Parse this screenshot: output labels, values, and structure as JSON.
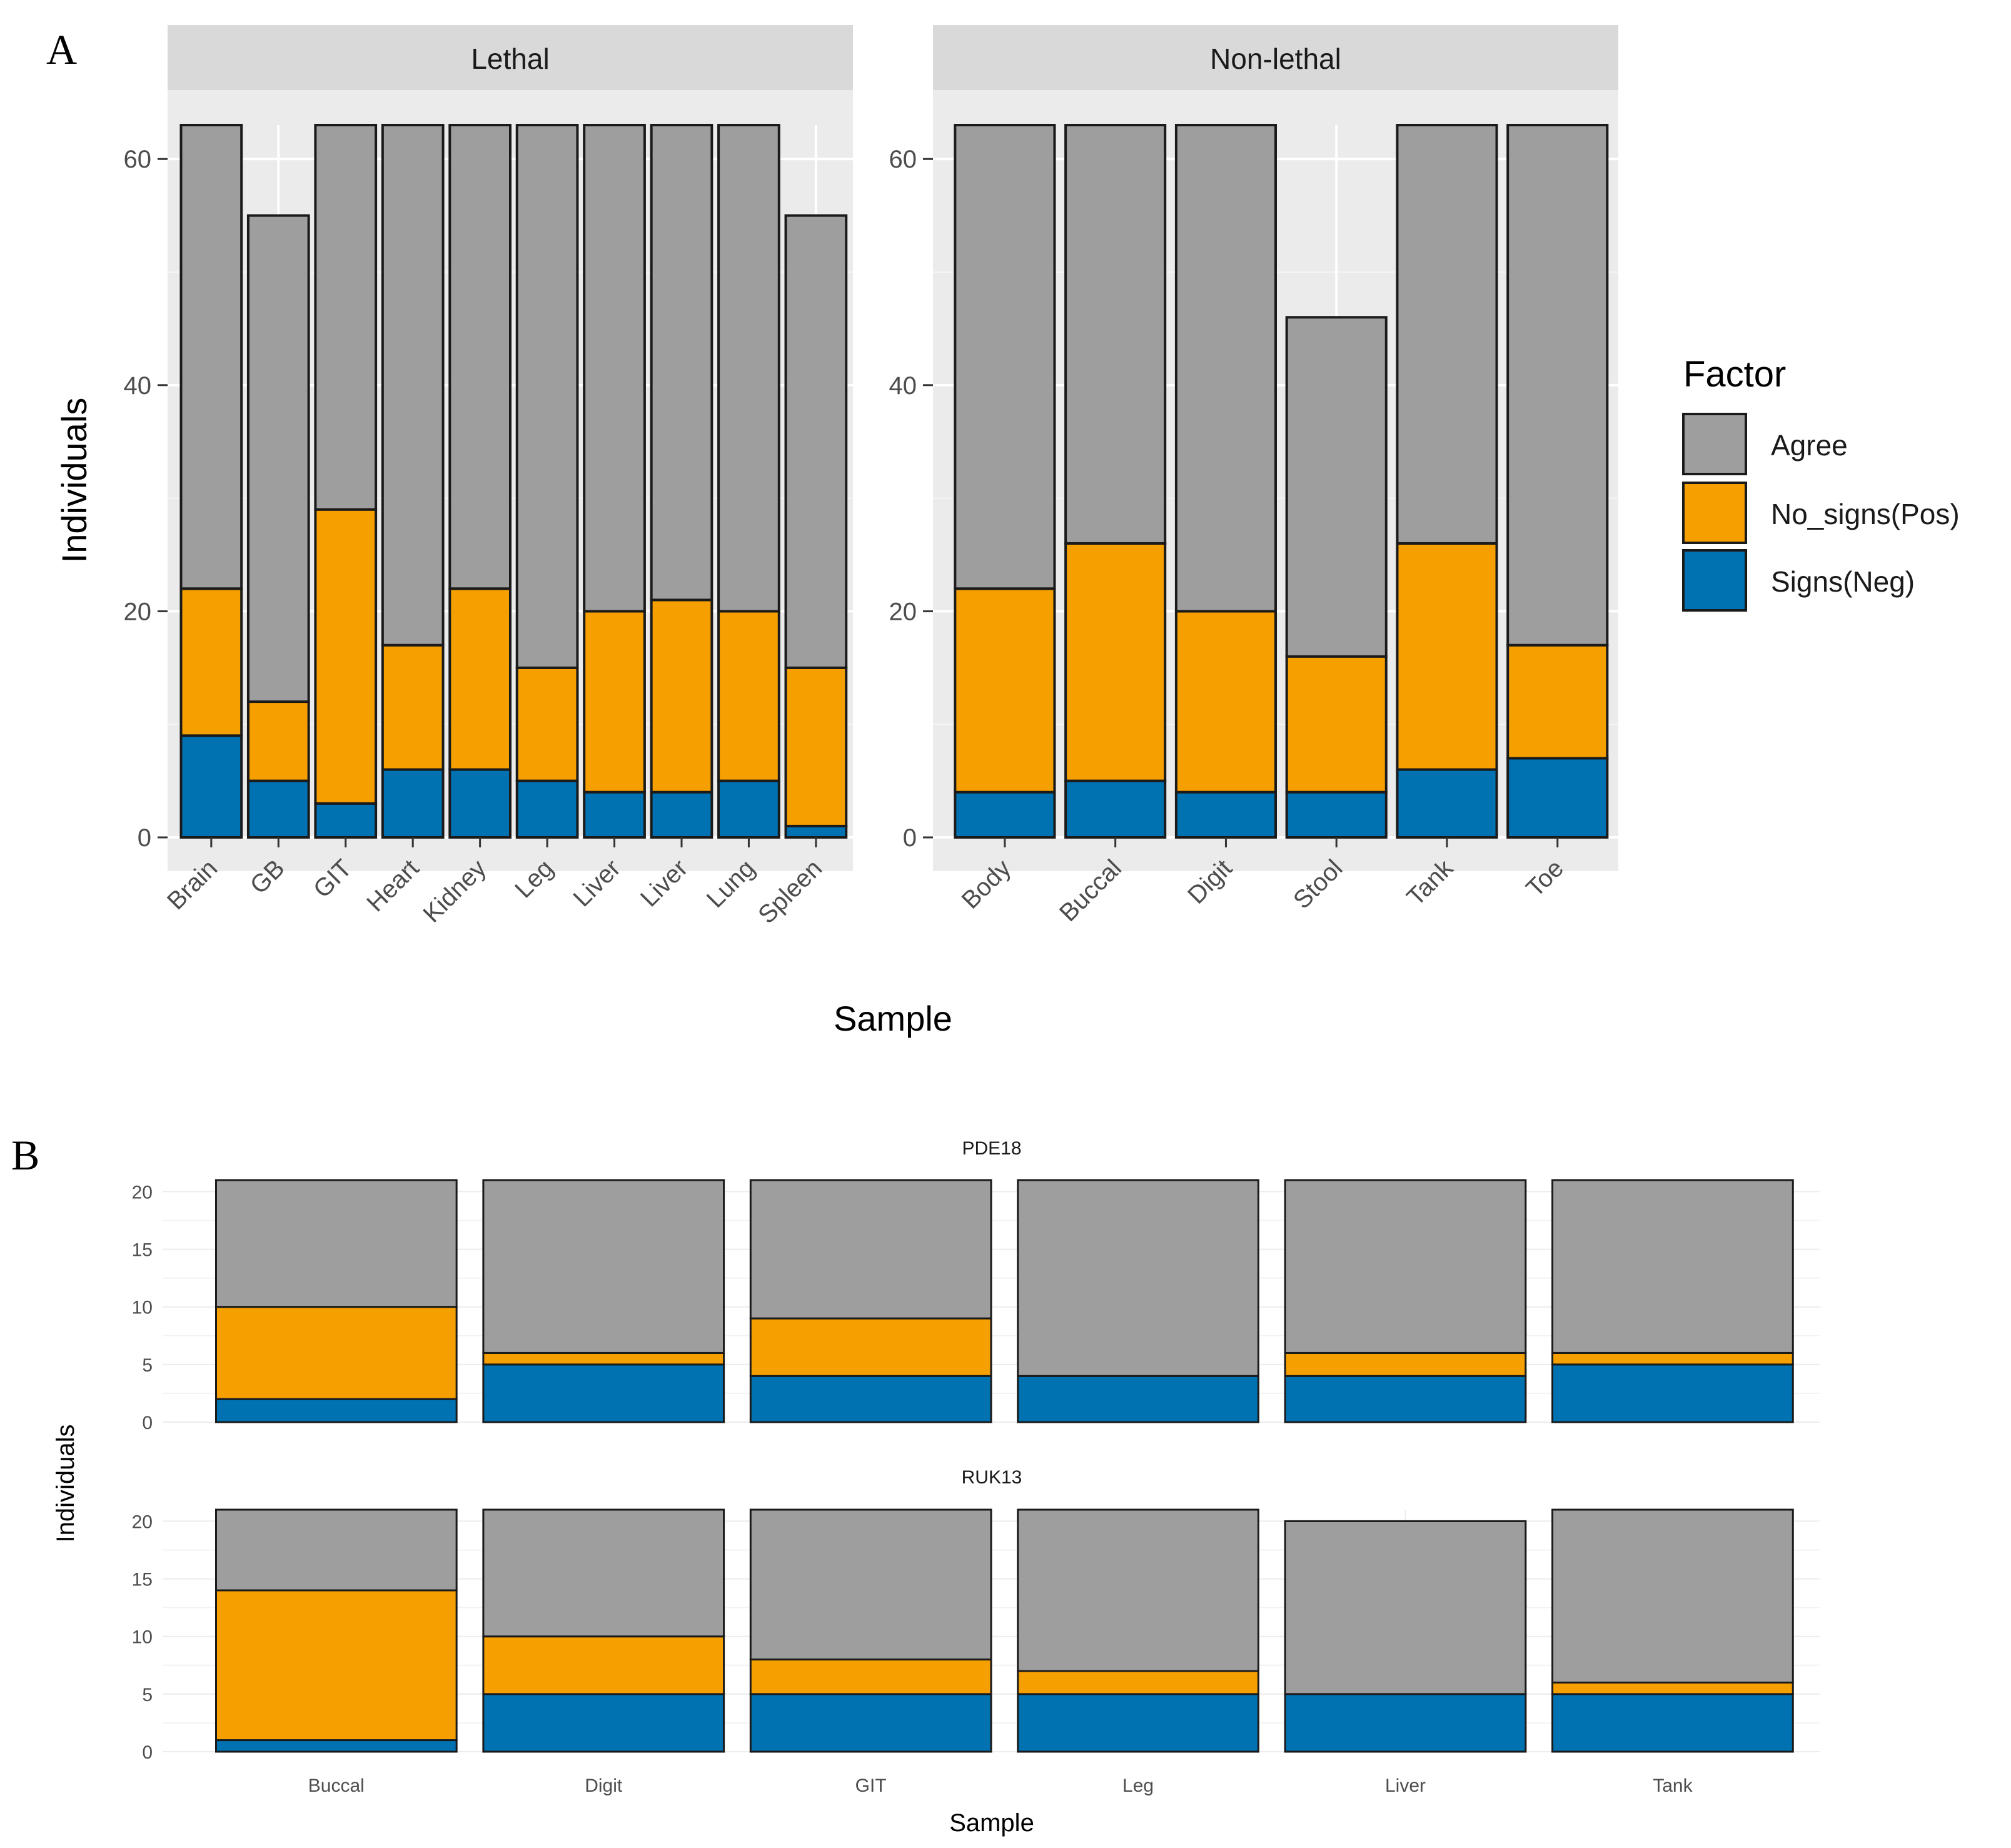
{
  "colors": {
    "agree": "#9e9e9e",
    "no_signs_pos": "#f59f00",
    "signs_neg": "#0072b2",
    "panel_bg_a": "#ebebeb",
    "strip_bg": "#d9d9d9",
    "grid_major_a": "#ffffff",
    "grid_b": "#ececec"
  },
  "panel_labels": {
    "a": "A",
    "b": "B"
  },
  "legend": {
    "title": "Factor",
    "entries": [
      {
        "key": "agree",
        "label": "Agree"
      },
      {
        "key": "no_signs_pos",
        "label": "No_signs(Pos)"
      },
      {
        "key": "signs_neg",
        "label": "Signs(Neg)"
      }
    ]
  },
  "chart_data": [
    {
      "id": "A",
      "type": "bar",
      "stacked": true,
      "xlabel": "Sample",
      "ylabel": "Individuals",
      "ylim": [
        0,
        63
      ],
      "yticks": [
        0,
        20,
        40,
        60
      ],
      "grid": true,
      "legend_position": "right",
      "stack_order": [
        "Signs(Neg)",
        "No_signs(Pos)",
        "Agree"
      ],
      "facets": [
        {
          "label": "Lethal",
          "categories": [
            "Brain",
            "GB",
            "GIT",
            "Heart",
            "Kidney",
            "Leg",
            "Liver",
            "Liver",
            "Lung",
            "Spleen"
          ],
          "series": [
            {
              "name": "Signs(Neg)",
              "values": [
                9,
                5,
                3,
                6,
                6,
                5,
                4,
                4,
                5,
                1
              ]
            },
            {
              "name": "No_signs(Pos)",
              "values": [
                13,
                7,
                26,
                11,
                16,
                10,
                16,
                17,
                15,
                14
              ]
            },
            {
              "name": "Agree",
              "values": [
                41,
                43,
                34,
                46,
                41,
                48,
                43,
                42,
                43,
                40
              ]
            }
          ]
        },
        {
          "label": "Non-lethal",
          "categories": [
            "Body",
            "Buccal",
            "Digit",
            "Stool",
            "Tank",
            "Toe"
          ],
          "series": [
            {
              "name": "Signs(Neg)",
              "values": [
                4,
                5,
                4,
                4,
                6,
                7
              ]
            },
            {
              "name": "No_signs(Pos)",
              "values": [
                18,
                21,
                16,
                12,
                20,
                10
              ]
            },
            {
              "name": "Agree",
              "values": [
                41,
                37,
                43,
                30,
                37,
                46
              ]
            }
          ]
        }
      ]
    },
    {
      "id": "B",
      "type": "bar",
      "stacked": true,
      "xlabel": "Sample",
      "ylabel": "Individuals",
      "ylim": [
        0,
        21
      ],
      "yticks": [
        0,
        5,
        10,
        15,
        20
      ],
      "grid": true,
      "legend_position": "none",
      "stack_order": [
        "Signs(Neg)",
        "No_signs(Pos)",
        "Agree"
      ],
      "facets": [
        {
          "label": "PDE18",
          "categories": [
            "Buccal",
            "Digit",
            "GIT",
            "Leg",
            "Liver",
            "Tank"
          ],
          "series": [
            {
              "name": "Signs(Neg)",
              "values": [
                2,
                5,
                4,
                4,
                4,
                5
              ]
            },
            {
              "name": "No_signs(Pos)",
              "values": [
                8,
                1,
                5,
                0,
                2,
                1
              ]
            },
            {
              "name": "Agree",
              "values": [
                11,
                15,
                12,
                17,
                15,
                15
              ]
            }
          ]
        },
        {
          "label": "RUK13",
          "categories": [
            "Buccal",
            "Digit",
            "GIT",
            "Leg",
            "Liver",
            "Tank"
          ],
          "series": [
            {
              "name": "Signs(Neg)",
              "values": [
                1,
                5,
                5,
                5,
                5,
                5
              ]
            },
            {
              "name": "No_signs(Pos)",
              "values": [
                13,
                5,
                3,
                2,
                0,
                1
              ]
            },
            {
              "name": "Agree",
              "values": [
                7,
                11,
                13,
                14,
                15,
                15
              ]
            }
          ]
        }
      ]
    }
  ]
}
